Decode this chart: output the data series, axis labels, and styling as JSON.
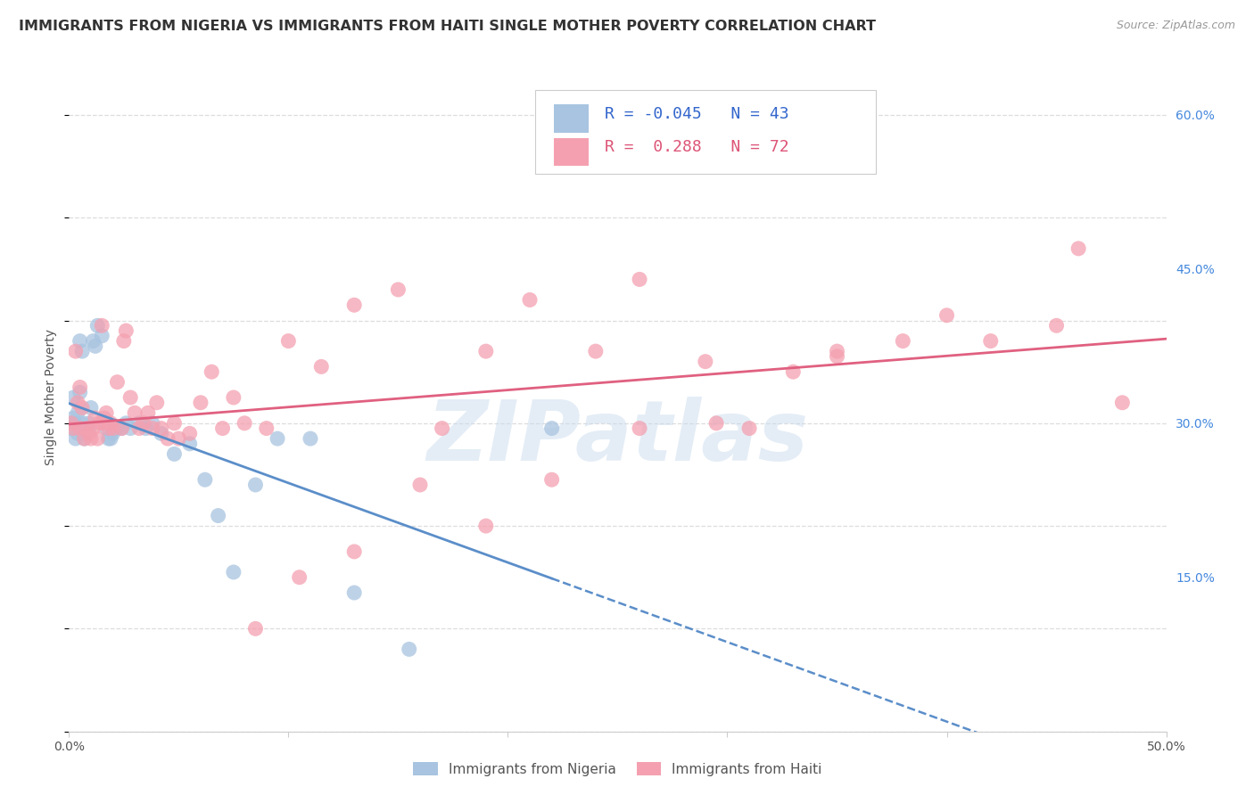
{
  "title": "IMMIGRANTS FROM NIGERIA VS IMMIGRANTS FROM HAITI SINGLE MOTHER POVERTY CORRELATION CHART",
  "source": "Source: ZipAtlas.com",
  "ylabel": "Single Mother Poverty",
  "xlim": [
    0.0,
    0.5
  ],
  "ylim": [
    0.0,
    0.65
  ],
  "nigeria_color": "#a8c4e0",
  "haiti_color": "#f4a0b0",
  "nigeria_line_color": "#5b8ec9",
  "haiti_line_color": "#e06080",
  "nigeria_R": -0.045,
  "nigeria_N": 43,
  "haiti_R": 0.288,
  "haiti_N": 72,
  "nigeria_scatter_x": [
    0.001,
    0.002,
    0.002,
    0.003,
    0.003,
    0.004,
    0.004,
    0.005,
    0.005,
    0.006,
    0.006,
    0.007,
    0.008,
    0.009,
    0.009,
    0.01,
    0.011,
    0.012,
    0.013,
    0.015,
    0.017,
    0.018,
    0.019,
    0.02,
    0.022,
    0.024,
    0.026,
    0.028,
    0.032,
    0.035,
    0.038,
    0.042,
    0.048,
    0.055,
    0.062,
    0.068,
    0.075,
    0.085,
    0.095,
    0.11,
    0.13,
    0.155,
    0.22
  ],
  "nigeria_scatter_y": [
    0.295,
    0.305,
    0.325,
    0.3,
    0.285,
    0.29,
    0.31,
    0.33,
    0.38,
    0.37,
    0.3,
    0.285,
    0.295,
    0.3,
    0.295,
    0.315,
    0.38,
    0.375,
    0.395,
    0.385,
    0.295,
    0.285,
    0.285,
    0.29,
    0.295,
    0.295,
    0.3,
    0.295,
    0.3,
    0.295,
    0.3,
    0.29,
    0.27,
    0.28,
    0.245,
    0.21,
    0.155,
    0.24,
    0.285,
    0.285,
    0.135,
    0.08,
    0.295
  ],
  "haiti_scatter_x": [
    0.001,
    0.002,
    0.003,
    0.004,
    0.005,
    0.005,
    0.006,
    0.007,
    0.008,
    0.009,
    0.01,
    0.011,
    0.012,
    0.013,
    0.014,
    0.015,
    0.015,
    0.016,
    0.017,
    0.018,
    0.019,
    0.02,
    0.022,
    0.024,
    0.025,
    0.026,
    0.028,
    0.03,
    0.032,
    0.034,
    0.036,
    0.038,
    0.04,
    0.042,
    0.045,
    0.048,
    0.05,
    0.055,
    0.06,
    0.065,
    0.07,
    0.075,
    0.08,
    0.09,
    0.1,
    0.115,
    0.13,
    0.15,
    0.17,
    0.19,
    0.21,
    0.24,
    0.26,
    0.29,
    0.31,
    0.33,
    0.35,
    0.38,
    0.4,
    0.42,
    0.45,
    0.46,
    0.48,
    0.35,
    0.295,
    0.26,
    0.22,
    0.19,
    0.16,
    0.13,
    0.105,
    0.085
  ],
  "haiti_scatter_y": [
    0.3,
    0.295,
    0.37,
    0.32,
    0.295,
    0.335,
    0.315,
    0.285,
    0.295,
    0.29,
    0.285,
    0.295,
    0.305,
    0.285,
    0.3,
    0.3,
    0.395,
    0.305,
    0.31,
    0.295,
    0.3,
    0.295,
    0.34,
    0.295,
    0.38,
    0.39,
    0.325,
    0.31,
    0.295,
    0.3,
    0.31,
    0.295,
    0.32,
    0.295,
    0.285,
    0.3,
    0.285,
    0.29,
    0.32,
    0.35,
    0.295,
    0.325,
    0.3,
    0.295,
    0.38,
    0.355,
    0.415,
    0.43,
    0.295,
    0.37,
    0.42,
    0.37,
    0.44,
    0.36,
    0.295,
    0.35,
    0.37,
    0.38,
    0.405,
    0.38,
    0.395,
    0.47,
    0.32,
    0.365,
    0.3,
    0.295,
    0.245,
    0.2,
    0.24,
    0.175,
    0.15,
    0.1
  ],
  "watermark": "ZIPatlas",
  "background_color": "#ffffff",
  "grid_color": "#dddddd",
  "title_fontsize": 11.5,
  "axis_label_fontsize": 10,
  "tick_label_fontsize": 10,
  "legend_fontsize": 13
}
